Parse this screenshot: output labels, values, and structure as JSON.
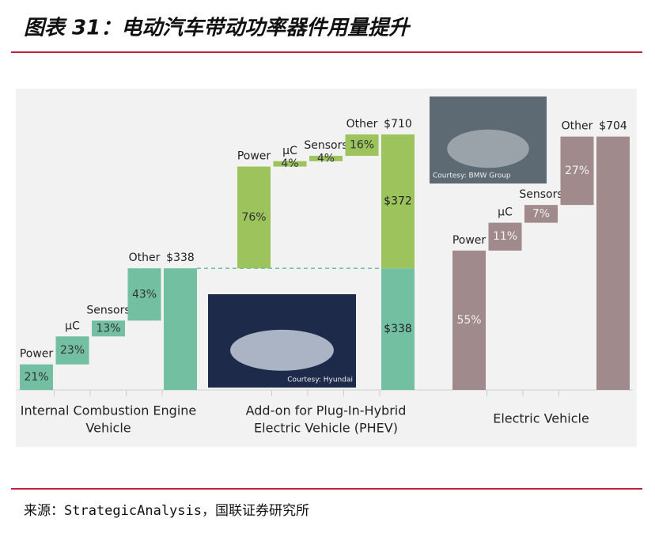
{
  "header": {
    "title": "图表 31：电动汽车带动功率器件用量提升"
  },
  "chart_data": {
    "type": "waterfall",
    "groups": [
      {
        "label_lines": [
          "Internal Combustion Engine",
          "Vehicle"
        ],
        "categories": [
          "Power",
          "μC",
          "Sensors",
          "Other"
        ],
        "values": [
          21,
          23,
          13,
          43
        ],
        "value_labels": [
          "21%",
          "23%",
          "13%",
          "43%"
        ],
        "color": "#72bfa2",
        "label_color": "#333333",
        "total": {
          "value": 338,
          "label": "$338"
        }
      },
      {
        "label_lines": [
          "Add-on for Plug-In-Hybrid",
          "Electric Vehicle (PHEV)"
        ],
        "categories": [
          "Power",
          "μC",
          "Sensors",
          "Other"
        ],
        "values": [
          76,
          4,
          4,
          16
        ],
        "value_labels": [
          "76%",
          "4%",
          "4%",
          "16%"
        ],
        "color": "#9cc35c",
        "label_color": "#333333",
        "base_color": "#72bfa2",
        "base": {
          "value": 338,
          "label": "$338"
        },
        "addition": {
          "value": 372,
          "label": "$372"
        },
        "total": {
          "value": 710,
          "label": "$710"
        }
      },
      {
        "label_lines": [
          "Electric Vehicle"
        ],
        "categories": [
          "Power",
          "μC",
          "Sensors",
          "Other"
        ],
        "values": [
          55,
          11,
          7,
          27
        ],
        "value_labels": [
          "55%",
          "11%",
          "7%",
          "27%"
        ],
        "color": "#a08a8b",
        "label_color": "#f2f2f2",
        "total": {
          "value": 704,
          "label": "$704"
        }
      }
    ],
    "photos": [
      {
        "caption": "Courtesy: Hyundai"
      },
      {
        "caption": "Courtesy: BMW Group"
      }
    ]
  },
  "source": "来源：StrategicAnalysis，国联证券研究所"
}
